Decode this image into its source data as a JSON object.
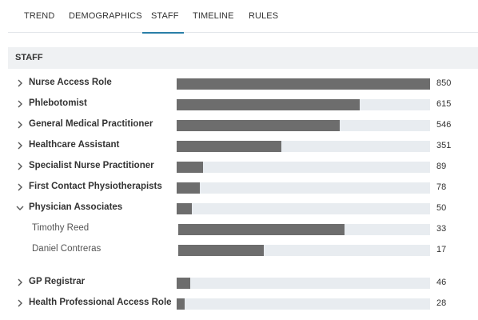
{
  "tabs": [
    {
      "label": "TREND"
    },
    {
      "label": "DEMOGRAPHICS"
    },
    {
      "label": "STAFF"
    },
    {
      "label": "TIMELINE"
    },
    {
      "label": "RULES"
    }
  ],
  "active_tab": "STAFF",
  "section": {
    "title": "STAFF"
  },
  "rows": [
    {
      "label": "Nurse Access Role",
      "value": 850,
      "value_text": "850",
      "expanded": false
    },
    {
      "label": "Phlebotomist",
      "value": 615,
      "value_text": "615",
      "expanded": false
    },
    {
      "label": "General Medical Practitioner",
      "value": 546,
      "value_text": "546",
      "expanded": false
    },
    {
      "label": "Healthcare Assistant",
      "value": 351,
      "value_text": "351",
      "expanded": false
    },
    {
      "label": "Specialist Nurse Practitioner",
      "value": 89,
      "value_text": "89",
      "expanded": false
    },
    {
      "label": "First Contact Physiotherapists",
      "value": 78,
      "value_text": "78",
      "expanded": false
    },
    {
      "label": "Physician Associates",
      "value": 50,
      "value_text": "50",
      "expanded": true,
      "children": [
        {
          "label": "Timothy Reed",
          "value": 33,
          "value_text": "33"
        },
        {
          "label": "Daniel Contreras",
          "value": 17,
          "value_text": "17"
        }
      ]
    },
    {
      "label": "GP Registrar",
      "value": 46,
      "value_text": "46",
      "expanded": false
    },
    {
      "label": "Health Professional Access Role",
      "value": 28,
      "value_text": "28",
      "expanded": false
    }
  ],
  "colors": {
    "fill": "#6d6d6d",
    "track": "#e8ecf0",
    "tab_accent": "#2a7fa8",
    "header_bg": "#eff1f3"
  }
}
